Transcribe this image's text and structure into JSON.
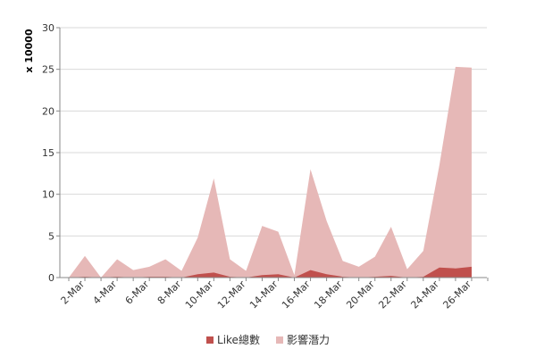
{
  "chart_data": {
    "type": "area",
    "ylabel": "x 10000",
    "ylim": [
      0,
      30
    ],
    "yticks": [
      0,
      5,
      10,
      15,
      20,
      25,
      30
    ],
    "grid": true,
    "legend_position": "bottom",
    "x": [
      "1-Mar",
      "2-Mar",
      "3-Mar",
      "4-Mar",
      "5-Mar",
      "6-Mar",
      "7-Mar",
      "8-Mar",
      "9-Mar",
      "10-Mar",
      "11-Mar",
      "12-Mar",
      "13-Mar",
      "14-Mar",
      "15-Mar",
      "16-Mar",
      "17-Mar",
      "18-Mar",
      "19-Mar",
      "20-Mar",
      "21-Mar",
      "22-Mar",
      "23-Mar",
      "24-Mar",
      "25-Mar",
      "26-Mar",
      "27-Mar"
    ],
    "x_tick_labels": [
      "2-Mar",
      "4-Mar",
      "6-Mar",
      "8-Mar",
      "10-Mar",
      "12-Mar",
      "14-Mar",
      "16-Mar",
      "18-Mar",
      "20-Mar",
      "22-Mar",
      "24-Mar",
      "26-Mar"
    ],
    "series": [
      {
        "name": "影響潛力",
        "color": "#e6b8b7",
        "values": [
          0,
          2.6,
          0,
          2.2,
          0.9,
          1.3,
          2.2,
          0.8,
          4.8,
          11.9,
          2.2,
          0.8,
          6.2,
          5.5,
          0.3,
          13.0,
          6.8,
          2.0,
          1.3,
          2.5,
          6.1,
          1.0,
          3.2,
          13.5,
          25.3,
          25.2,
          null
        ],
        "values_note_removed": true
      },
      {
        "name": "Like總數",
        "color": "#c0504d",
        "values": [
          0,
          0.1,
          0,
          0.1,
          0,
          0.1,
          0.1,
          0,
          0.4,
          0.6,
          0.1,
          0,
          0.3,
          0.4,
          0,
          0.9,
          0.4,
          0.1,
          0,
          0.1,
          0.2,
          0,
          0.1,
          1.2,
          1.1,
          1.3,
          null
        ]
      }
    ]
  }
}
